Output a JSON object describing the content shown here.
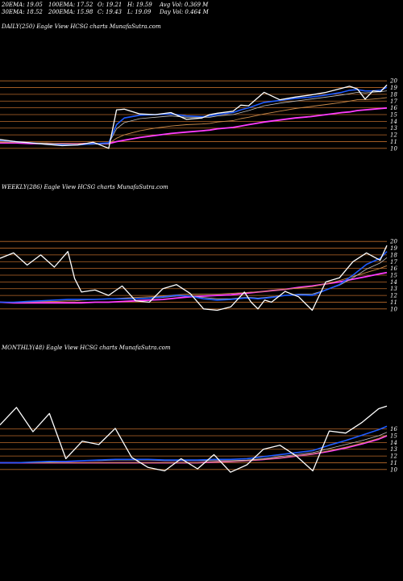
{
  "header": {
    "ema20": "20EMA: 19.05",
    "ema100": "100EMA: 17.52",
    "open": "O: 19.21",
    "high": "H: 19.59",
    "avgvol": "Avg Vol: 0.369 M",
    "ema30": "30EMA: 18.52",
    "ema200": "200EMA: 15.98",
    "close": "C: 19.43",
    "low": "L: 19.09",
    "dayvol": "Day Vol: 0.464  M"
  },
  "panels": [
    {
      "label": "DAILY(250) Eagle  View  HCSG charts MunafaSutra.com"
    },
    {
      "label": "WEEKLY(286) Eagle  View  HCSG charts MunafaSutra.com"
    },
    {
      "label": "MONTHLY(48) Eagle  View  HCSG charts MunafaSutra.com"
    }
  ],
  "colors": {
    "background": "#000000",
    "price": "#ffffff",
    "ema_fast": "#1e5bff",
    "ema_slow": "#ff3cff",
    "ema_mid": "#c98a4a",
    "ema_gray": "#c0c0c0",
    "grid": "#b8692a"
  },
  "chart_data": [
    {
      "type": "line",
      "title": "DAILY(250)",
      "yticks": [
        20,
        19,
        18,
        17,
        16,
        15,
        14,
        13,
        12,
        11,
        10
      ],
      "ylim": [
        9.5,
        20.5
      ],
      "x": [
        0,
        10,
        20,
        30,
        40,
        50,
        60,
        70,
        75,
        80,
        90,
        100,
        110,
        120,
        130,
        135,
        140,
        150,
        155,
        160,
        170,
        180,
        190,
        200,
        210,
        220,
        225,
        230,
        235,
        240,
        245,
        249
      ],
      "series": [
        {
          "name": "price",
          "values": [
            11.3,
            11.0,
            10.8,
            10.6,
            10.4,
            10.5,
            10.9,
            10.0,
            15.7,
            15.8,
            15.1,
            15.0,
            15.3,
            14.3,
            14.5,
            15.0,
            15.2,
            15.5,
            16.4,
            16.3,
            18.3,
            17.2,
            17.6,
            17.9,
            18.3,
            18.9,
            19.2,
            18.8,
            17.3,
            18.5,
            18.4,
            19.4
          ]
        },
        {
          "name": "ema20",
          "values": [
            11.2,
            11.0,
            10.8,
            10.6,
            10.5,
            10.5,
            10.7,
            10.8,
            13.5,
            14.5,
            14.9,
            15.0,
            15.1,
            14.8,
            14.7,
            14.8,
            15.0,
            15.3,
            15.7,
            16.0,
            16.8,
            17.1,
            17.4,
            17.6,
            17.9,
            18.3,
            18.6,
            18.7,
            18.5,
            18.5,
            18.6,
            19.05
          ]
        },
        {
          "name": "ema30",
          "values": [
            11.1,
            11.0,
            10.8,
            10.7,
            10.6,
            10.5,
            10.6,
            10.7,
            12.9,
            13.8,
            14.4,
            14.6,
            14.8,
            14.6,
            14.6,
            14.6,
            14.8,
            15.0,
            15.3,
            15.6,
            16.3,
            16.7,
            17.0,
            17.3,
            17.6,
            17.9,
            18.1,
            18.3,
            18.2,
            18.3,
            18.4,
            18.52
          ]
        },
        {
          "name": "ema100",
          "values": [
            10.9,
            10.9,
            10.8,
            10.8,
            10.7,
            10.7,
            10.7,
            10.7,
            11.5,
            12.0,
            12.6,
            13.0,
            13.3,
            13.5,
            13.6,
            13.7,
            13.9,
            14.1,
            14.4,
            14.6,
            15.1,
            15.5,
            15.9,
            16.2,
            16.5,
            16.8,
            17.0,
            17.2,
            17.2,
            17.3,
            17.4,
            17.52
          ]
        },
        {
          "name": "ema200",
          "values": [
            10.8,
            10.8,
            10.7,
            10.7,
            10.7,
            10.7,
            10.7,
            10.7,
            11.0,
            11.2,
            11.6,
            11.9,
            12.2,
            12.4,
            12.6,
            12.7,
            12.9,
            13.1,
            13.3,
            13.5,
            13.9,
            14.2,
            14.5,
            14.7,
            15.0,
            15.3,
            15.4,
            15.6,
            15.7,
            15.8,
            15.9,
            15.98
          ]
        }
      ]
    },
    {
      "type": "line",
      "title": "WEEKLY(286)",
      "yticks": [
        20,
        19,
        18,
        17,
        16,
        15,
        14,
        13,
        12,
        11,
        10
      ],
      "ylim": [
        9.5,
        20.5
      ],
      "x": [
        0,
        10,
        20,
        30,
        40,
        50,
        55,
        60,
        70,
        80,
        90,
        100,
        110,
        120,
        130,
        140,
        150,
        160,
        170,
        180,
        185,
        190,
        195,
        200,
        210,
        220,
        230,
        240,
        250,
        260,
        270,
        280,
        285
      ],
      "series": [
        {
          "name": "price",
          "values": [
            17.5,
            18.3,
            16.5,
            18.0,
            16.2,
            18.5,
            14.5,
            12.5,
            12.8,
            12.0,
            13.4,
            11.2,
            11.0,
            13.0,
            13.6,
            12.3,
            10.0,
            9.8,
            10.3,
            12.5,
            11.0,
            10.0,
            11.3,
            11.0,
            12.6,
            11.8,
            9.8,
            14.0,
            14.6,
            17.0,
            18.3,
            17.2,
            19.4
          ]
        },
        {
          "name": "ema20",
          "values": [
            11.0,
            11.0,
            11.1,
            11.2,
            11.3,
            11.4,
            11.4,
            11.4,
            11.4,
            11.5,
            11.5,
            11.5,
            11.6,
            11.8,
            12.0,
            11.9,
            11.5,
            11.3,
            11.4,
            11.6,
            11.6,
            11.5,
            11.6,
            11.7,
            12.0,
            12.1,
            12.0,
            12.8,
            13.6,
            15.0,
            16.6,
            17.5,
            18.5
          ]
        },
        {
          "name": "ema30",
          "values": [
            11.0,
            11.0,
            11.1,
            11.2,
            11.3,
            11.4,
            11.4,
            11.4,
            11.4,
            11.5,
            11.5,
            11.5,
            11.6,
            11.7,
            11.9,
            11.9,
            11.7,
            11.5,
            11.5,
            11.7,
            11.7,
            11.6,
            11.7,
            11.8,
            12.0,
            12.2,
            12.2,
            12.8,
            13.5,
            14.6,
            15.9,
            16.8,
            17.6
          ]
        },
        {
          "name": "ema100",
          "values": [
            11.0,
            11.0,
            11.0,
            11.1,
            11.1,
            11.2,
            11.2,
            11.3,
            11.4,
            11.5,
            11.6,
            11.7,
            11.8,
            11.9,
            12.1,
            12.2,
            12.2,
            12.2,
            12.3,
            12.4,
            12.5,
            12.5,
            12.6,
            12.7,
            12.9,
            13.1,
            13.3,
            13.7,
            14.2,
            14.8,
            15.4,
            16.0,
            16.4
          ]
        },
        {
          "name": "ema200",
          "values": [
            11.0,
            10.9,
            10.9,
            10.9,
            10.9,
            10.9,
            10.9,
            10.9,
            11.0,
            11.0,
            11.1,
            11.2,
            11.3,
            11.4,
            11.6,
            11.8,
            11.9,
            12.0,
            12.1,
            12.3,
            12.4,
            12.5,
            12.6,
            12.7,
            12.9,
            13.2,
            13.4,
            13.7,
            14.0,
            14.4,
            14.8,
            15.2,
            15.4
          ]
        }
      ]
    },
    {
      "type": "line",
      "title": "MONTHLY(48)",
      "yticks": [
        16,
        15,
        14,
        13,
        12,
        11,
        10
      ],
      "ylim": [
        9.5,
        20.5
      ],
      "x": [
        0,
        2,
        4,
        6,
        8,
        10,
        12,
        14,
        16,
        18,
        20,
        22,
        24,
        26,
        28,
        30,
        32,
        34,
        36,
        38,
        40,
        42,
        44,
        46,
        47
      ],
      "series": [
        {
          "name": "price",
          "values": [
            16.6,
            19.2,
            15.6,
            18.3,
            11.6,
            14.2,
            13.7,
            16.1,
            11.8,
            10.3,
            9.8,
            11.6,
            10.1,
            12.2,
            9.6,
            10.7,
            13.0,
            13.6,
            12.0,
            9.8,
            15.7,
            15.4,
            17.0,
            19.0,
            19.4
          ]
        },
        {
          "name": "ema20",
          "values": [
            11.0,
            11.0,
            11.1,
            11.2,
            11.2,
            11.3,
            11.4,
            11.5,
            11.5,
            11.5,
            11.4,
            11.4,
            11.4,
            11.5,
            11.5,
            11.6,
            11.9,
            12.2,
            12.5,
            12.8,
            13.6,
            14.3,
            15.1,
            15.9,
            16.4
          ]
        },
        {
          "name": "ema30",
          "values": [
            11.0,
            11.0,
            11.1,
            11.1,
            11.2,
            11.3,
            11.3,
            11.4,
            11.4,
            11.4,
            11.3,
            11.3,
            11.3,
            11.3,
            11.3,
            11.4,
            11.6,
            11.9,
            12.2,
            12.5,
            13.1,
            13.7,
            14.3,
            15.0,
            15.5
          ]
        },
        {
          "name": "ema100",
          "values": [
            11.0,
            11.0,
            11.0,
            11.0,
            11.0,
            11.0,
            11.0,
            11.0,
            11.0,
            11.0,
            11.0,
            11.0,
            11.0,
            11.1,
            11.2,
            11.3,
            11.5,
            11.7,
            12.0,
            12.3,
            12.8,
            13.3,
            13.9,
            14.6,
            15.1
          ]
        },
        {
          "name": "ema200",
          "values": [
            11.0,
            11.0,
            11.0,
            11.0,
            11.0,
            11.0,
            11.0,
            11.0,
            11.0,
            11.0,
            11.0,
            11.0,
            11.0,
            11.1,
            11.2,
            11.3,
            11.5,
            11.7,
            12.0,
            12.3,
            12.7,
            13.2,
            13.8,
            14.5,
            15.0
          ]
        }
      ]
    }
  ]
}
